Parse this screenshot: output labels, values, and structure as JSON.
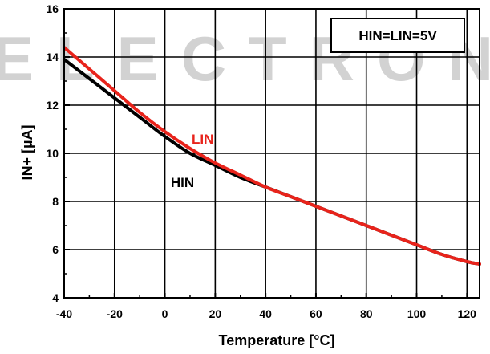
{
  "chart_data": {
    "type": "line",
    "xlabel": "Temperature [°C]",
    "ylabel": "IN+ [µA]",
    "xlim": [
      -40,
      125
    ],
    "ylim": [
      4,
      16
    ],
    "xticks": [
      "-40",
      "-20",
      "0",
      "20",
      "40",
      "60",
      "80",
      "100",
      "120"
    ],
    "yticks": [
      "4",
      "6",
      "8",
      "10",
      "12",
      "14",
      "16"
    ],
    "grid": true,
    "legend_box": "HIN=LIN=5V",
    "x": [
      -40,
      -30,
      -20,
      -10,
      0,
      10,
      20,
      30,
      40,
      50,
      60,
      70,
      80,
      90,
      100,
      110,
      120,
      125
    ],
    "series": [
      {
        "name": "HIN",
        "color": "#000000",
        "values": [
          13.9,
          13.1,
          12.3,
          11.5,
          10.7,
          10.0,
          9.5,
          9.0,
          8.6,
          8.2,
          7.8,
          7.4,
          7.0,
          6.6,
          6.2,
          5.8,
          5.5,
          5.4
        ]
      },
      {
        "name": "LIN",
        "color": "#e8231b",
        "values": [
          14.4,
          13.5,
          12.6,
          11.7,
          10.9,
          10.2,
          9.6,
          9.1,
          8.6,
          8.2,
          7.8,
          7.4,
          7.0,
          6.6,
          6.2,
          5.8,
          5.5,
          5.4
        ]
      }
    ],
    "annotations": [
      {
        "text": "LIN",
        "color": "#e8231b",
        "x": 15,
        "y": 10.4
      },
      {
        "text": "HIN",
        "color": "#000000",
        "x": 7,
        "y": 8.6
      }
    ]
  },
  "watermark": "ELECTRONIC"
}
